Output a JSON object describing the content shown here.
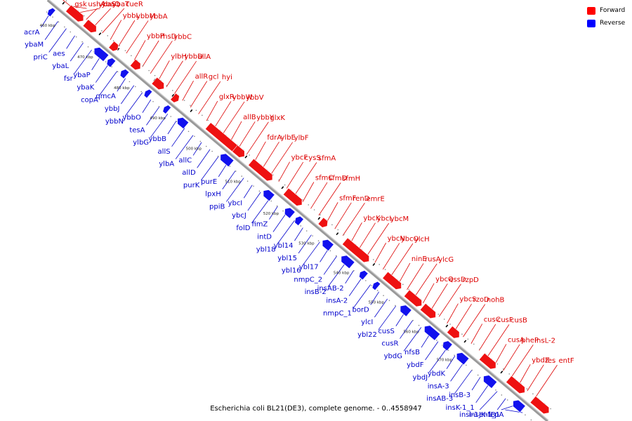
{
  "footer": "Escherichia coli BL21(DE3), complete genome. - 0..4558947",
  "legend": [
    {
      "label": "Forward",
      "color": "#ff0000"
    },
    {
      "label": "Reverse",
      "color": "#0000ff"
    }
  ],
  "colors": {
    "forward": "#ee1111",
    "reverse": "#1111ee",
    "backbone": "#999999"
  },
  "ticks": [
    "460 kbp",
    "470 kbp",
    "480 kbp",
    "490 kbp",
    "500 kbp",
    "510 kbp",
    "520 kbp",
    "530 kbp",
    "540 kbp",
    "550 kbp",
    "560 kbp",
    "570 kbp"
  ],
  "forward_genes": [
    "gsk",
    "ushA",
    "ybaQ",
    "ybaS",
    "ybaT",
    "cueR",
    "ybbL",
    "ybbM",
    "ybbA",
    "ybbP",
    "rhsD",
    "ybbC",
    "ylbH",
    "ybbD",
    "allA",
    "allR",
    "gcl",
    "hyi",
    "glxR",
    "ybbW",
    "ybbV",
    "allB",
    "ybbY",
    "glxK",
    "fdrA",
    "ylbE",
    "ylbF",
    "ybcF",
    "cysS",
    "sfmA",
    "sfmC",
    "sfmD",
    "sfmH",
    "sfmF",
    "renD",
    "emrE",
    "ybcK",
    "ybcL",
    "ybcM",
    "ybcN",
    "ybcO",
    "ylcH",
    "ninE",
    "rusA",
    "ylcG",
    "ybcQ",
    "essD",
    "rzpD",
    "ybcS",
    "rzoD",
    "nohB",
    "cusC",
    "cusF",
    "cusB",
    "cusA",
    "pheP",
    "insL-2",
    "ybdZ",
    "fes",
    "entF"
  ],
  "reverse_genes": [
    "acrA",
    "ybaM",
    "priC",
    "aes",
    "ybaL",
    "fsr",
    "ybaP",
    "ybaK",
    "copA",
    "qmcA",
    "ybbJ",
    "ybbN",
    "ybbO",
    "tesA",
    "ylbG",
    "ybbB",
    "allS",
    "ylbA",
    "allC",
    "allD",
    "purK",
    "purE",
    "lpxH",
    "ppiB",
    "ybcI",
    "ybcJ",
    "folD",
    "fimZ",
    "intD",
    "ybl18",
    "ybl14",
    "ybl15",
    "ybl16",
    "ybl17",
    "nmpC_2",
    "insB-2",
    "insAB-2",
    "insA-2",
    "nmpC_1",
    "borD",
    "ylcI",
    "ybl22",
    "cusS",
    "cusR",
    "ybdG",
    "nfsB",
    "ybdF",
    "ybdJ",
    "ybdK",
    "insA-3",
    "insAB-3",
    "insB-3",
    "insK-1_1",
    "insI-1",
    "entD",
    "insJK-1_1",
    "fepA"
  ]
}
